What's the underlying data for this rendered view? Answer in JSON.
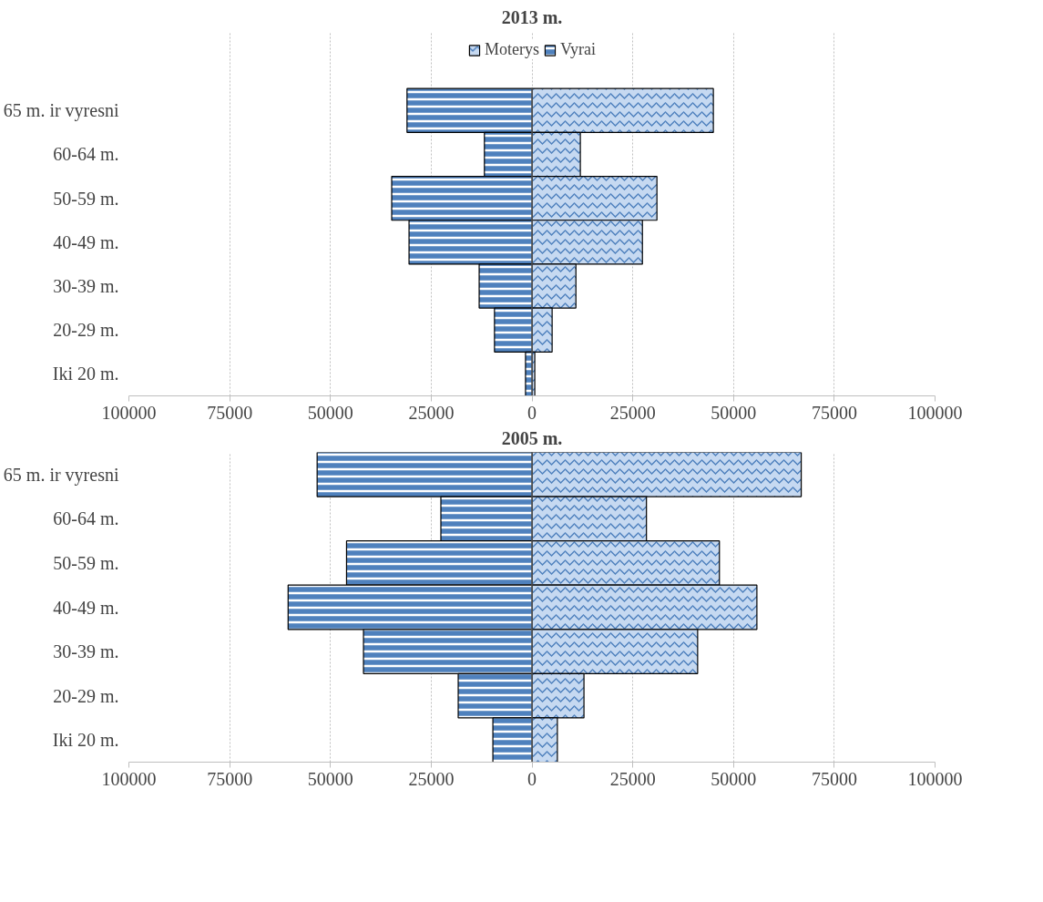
{
  "chart_data": [
    {
      "type": "bar",
      "title": "2013 m.",
      "orientation": "horizontal",
      "categories": [
        "65 m. ir vyresni",
        "60-64 m.",
        "50-59 m.",
        "40-49 m.",
        "30-39 m.",
        "20-29 m.",
        "Iki 20 m."
      ],
      "series": [
        {
          "name": "Moterys",
          "color": "#c6d9f1",
          "values": [
            45000,
            12000,
            31000,
            27400,
            10900,
            5000,
            700
          ]
        },
        {
          "name": "Vyrai",
          "color": "#4f81bd",
          "values": [
            -31000,
            -11800,
            -34800,
            -30500,
            -13100,
            -9300,
            -1600
          ]
        }
      ],
      "xlim": [
        -100000,
        100000
      ],
      "xticks": [
        {
          "value": -100000,
          "label": "100000"
        },
        {
          "value": -75000,
          "label": "75000"
        },
        {
          "value": -50000,
          "label": "50000"
        },
        {
          "value": -25000,
          "label": "25000"
        },
        0,
        25000,
        50000,
        75000,
        100000
      ],
      "grid": "x",
      "legend": "top",
      "stacked": true
    },
    {
      "type": "bar",
      "title": "2005 m.",
      "orientation": "horizontal",
      "categories": [
        "65 m. ir vyresni",
        "60-64 m.",
        "50-59 m.",
        "40-49 m.",
        "30-39 m.",
        "20-29 m.",
        "Iki 20 m."
      ],
      "series": [
        {
          "color": "#c6d9f1",
          "values": [
            66800,
            28400,
            46500,
            55800,
            41100,
            12900,
            6300
          ]
        },
        {
          "color": "#4f81bd",
          "values": [
            -53300,
            -22600,
            -46000,
            -60500,
            -41800,
            -18300,
            -9700
          ]
        }
      ],
      "xlim": [
        -100000,
        100000
      ],
      "xticks": [
        {
          "value": -100000,
          "label": "100000"
        },
        {
          "value": -75000,
          "label": "75000"
        },
        {
          "value": -50000,
          "label": "50000"
        },
        {
          "value": -25000,
          "label": "25000"
        },
        0,
        25000,
        50000,
        75000,
        100000
      ],
      "grid": "x",
      "legend": false,
      "stacked": true
    }
  ]
}
